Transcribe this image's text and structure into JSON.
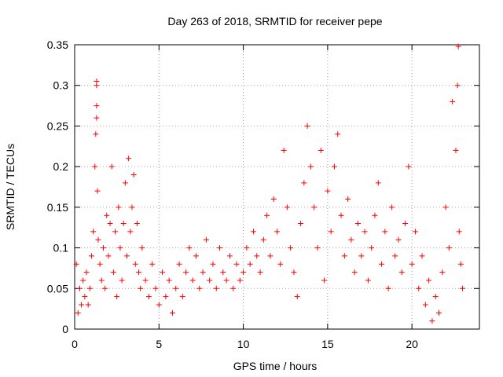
{
  "chart_data": {
    "type": "scatter",
    "title": "Day 263 of 2018, SRMTID for receiver pepe",
    "xlabel": "GPS time / hours",
    "ylabel": "SRMTID / TECUs",
    "xlim": [
      0,
      24
    ],
    "ylim": [
      0,
      0.35
    ],
    "x_ticks": [
      0,
      5,
      10,
      15,
      20
    ],
    "x_tick_labels": [
      "0",
      "5",
      "10",
      "15",
      "20"
    ],
    "y_ticks": [
      0,
      0.05,
      0.1,
      0.15,
      0.2,
      0.25,
      0.3,
      0.35
    ],
    "y_tick_labels": [
      "0",
      "0.05",
      "0.1",
      "0.15",
      "0.2",
      "0.25",
      "0.3",
      "0.35"
    ],
    "grid": true,
    "marker": "plus",
    "color": "#ff0000",
    "series": [
      {
        "name": "SRMTID",
        "points": [
          [
            0.1,
            0.08
          ],
          [
            0.2,
            0.02
          ],
          [
            0.3,
            0.05
          ],
          [
            0.4,
            0.03
          ],
          [
            0.5,
            0.06
          ],
          [
            0.6,
            0.04
          ],
          [
            0.7,
            0.07
          ],
          [
            0.8,
            0.03
          ],
          [
            0.9,
            0.05
          ],
          [
            1.0,
            0.09
          ],
          [
            1.1,
            0.12
          ],
          [
            1.2,
            0.2
          ],
          [
            1.3,
            0.305
          ],
          [
            1.3,
            0.3
          ],
          [
            1.3,
            0.275
          ],
          [
            1.25,
            0.24
          ],
          [
            1.3,
            0.26
          ],
          [
            1.35,
            0.17
          ],
          [
            1.4,
            0.11
          ],
          [
            1.5,
            0.08
          ],
          [
            1.6,
            0.06
          ],
          [
            1.7,
            0.1
          ],
          [
            1.8,
            0.05
          ],
          [
            1.9,
            0.14
          ],
          [
            2.0,
            0.09
          ],
          [
            2.1,
            0.13
          ],
          [
            2.2,
            0.2
          ],
          [
            2.3,
            0.07
          ],
          [
            2.4,
            0.12
          ],
          [
            2.5,
            0.04
          ],
          [
            2.6,
            0.15
          ],
          [
            2.7,
            0.1
          ],
          [
            2.8,
            0.06
          ],
          [
            2.9,
            0.13
          ],
          [
            3.0,
            0.18
          ],
          [
            3.1,
            0.09
          ],
          [
            3.2,
            0.21
          ],
          [
            3.3,
            0.12
          ],
          [
            3.4,
            0.15
          ],
          [
            3.5,
            0.19
          ],
          [
            3.6,
            0.08
          ],
          [
            3.7,
            0.13
          ],
          [
            3.8,
            0.07
          ],
          [
            3.9,
            0.05
          ],
          [
            4.0,
            0.1
          ],
          [
            4.2,
            0.06
          ],
          [
            4.4,
            0.04
          ],
          [
            4.6,
            0.08
          ],
          [
            4.8,
            0.05
          ],
          [
            5.0,
            0.03
          ],
          [
            5.2,
            0.07
          ],
          [
            5.4,
            0.04
          ],
          [
            5.6,
            0.06
          ],
          [
            5.8,
            0.02
          ],
          [
            6.0,
            0.05
          ],
          [
            6.2,
            0.08
          ],
          [
            6.4,
            0.04
          ],
          [
            6.6,
            0.07
          ],
          [
            6.8,
            0.1
          ],
          [
            7.0,
            0.06
          ],
          [
            7.2,
            0.09
          ],
          [
            7.4,
            0.05
          ],
          [
            7.6,
            0.07
          ],
          [
            7.8,
            0.11
          ],
          [
            8.0,
            0.06
          ],
          [
            8.2,
            0.08
          ],
          [
            8.4,
            0.05
          ],
          [
            8.6,
            0.1
          ],
          [
            8.8,
            0.07
          ],
          [
            9.0,
            0.06
          ],
          [
            9.2,
            0.09
          ],
          [
            9.4,
            0.05
          ],
          [
            9.6,
            0.08
          ],
          [
            9.8,
            0.06
          ],
          [
            10.0,
            0.07
          ],
          [
            10.2,
            0.1
          ],
          [
            10.4,
            0.08
          ],
          [
            10.6,
            0.12
          ],
          [
            10.8,
            0.09
          ],
          [
            11.0,
            0.07
          ],
          [
            11.2,
            0.11
          ],
          [
            11.4,
            0.14
          ],
          [
            11.6,
            0.09
          ],
          [
            11.8,
            0.16
          ],
          [
            12.0,
            0.12
          ],
          [
            12.2,
            0.08
          ],
          [
            12.4,
            0.22
          ],
          [
            12.6,
            0.15
          ],
          [
            12.8,
            0.1
          ],
          [
            13.0,
            0.07
          ],
          [
            13.2,
            0.04
          ],
          [
            13.4,
            0.13
          ],
          [
            13.6,
            0.18
          ],
          [
            13.8,
            0.25
          ],
          [
            14.0,
            0.2
          ],
          [
            14.2,
            0.15
          ],
          [
            14.4,
            0.1
          ],
          [
            14.6,
            0.22
          ],
          [
            14.8,
            0.06
          ],
          [
            15.0,
            0.17
          ],
          [
            15.2,
            0.12
          ],
          [
            15.4,
            0.2
          ],
          [
            15.6,
            0.24
          ],
          [
            15.8,
            0.14
          ],
          [
            16.0,
            0.09
          ],
          [
            16.2,
            0.16
          ],
          [
            16.4,
            0.11
          ],
          [
            16.6,
            0.07
          ],
          [
            16.8,
            0.13
          ],
          [
            17.0,
            0.09
          ],
          [
            17.2,
            0.12
          ],
          [
            17.4,
            0.06
          ],
          [
            17.6,
            0.1
          ],
          [
            17.8,
            0.14
          ],
          [
            18.0,
            0.18
          ],
          [
            18.2,
            0.08
          ],
          [
            18.4,
            0.12
          ],
          [
            18.6,
            0.05
          ],
          [
            18.8,
            0.15
          ],
          [
            19.0,
            0.09
          ],
          [
            19.2,
            0.11
          ],
          [
            19.4,
            0.07
          ],
          [
            19.6,
            0.13
          ],
          [
            19.8,
            0.2
          ],
          [
            20.0,
            0.08
          ],
          [
            20.2,
            0.12
          ],
          [
            20.4,
            0.05
          ],
          [
            20.6,
            0.09
          ],
          [
            20.8,
            0.03
          ],
          [
            21.0,
            0.06
          ],
          [
            21.2,
            0.01
          ],
          [
            21.4,
            0.04
          ],
          [
            21.6,
            0.02
          ],
          [
            21.8,
            0.07
          ],
          [
            22.0,
            0.15
          ],
          [
            22.2,
            0.1
          ],
          [
            22.4,
            0.28
          ],
          [
            22.6,
            0.22
          ],
          [
            22.7,
            0.3
          ],
          [
            22.75,
            0.348
          ],
          [
            22.8,
            0.12
          ],
          [
            22.9,
            0.08
          ],
          [
            23.0,
            0.05
          ]
        ]
      }
    ]
  }
}
